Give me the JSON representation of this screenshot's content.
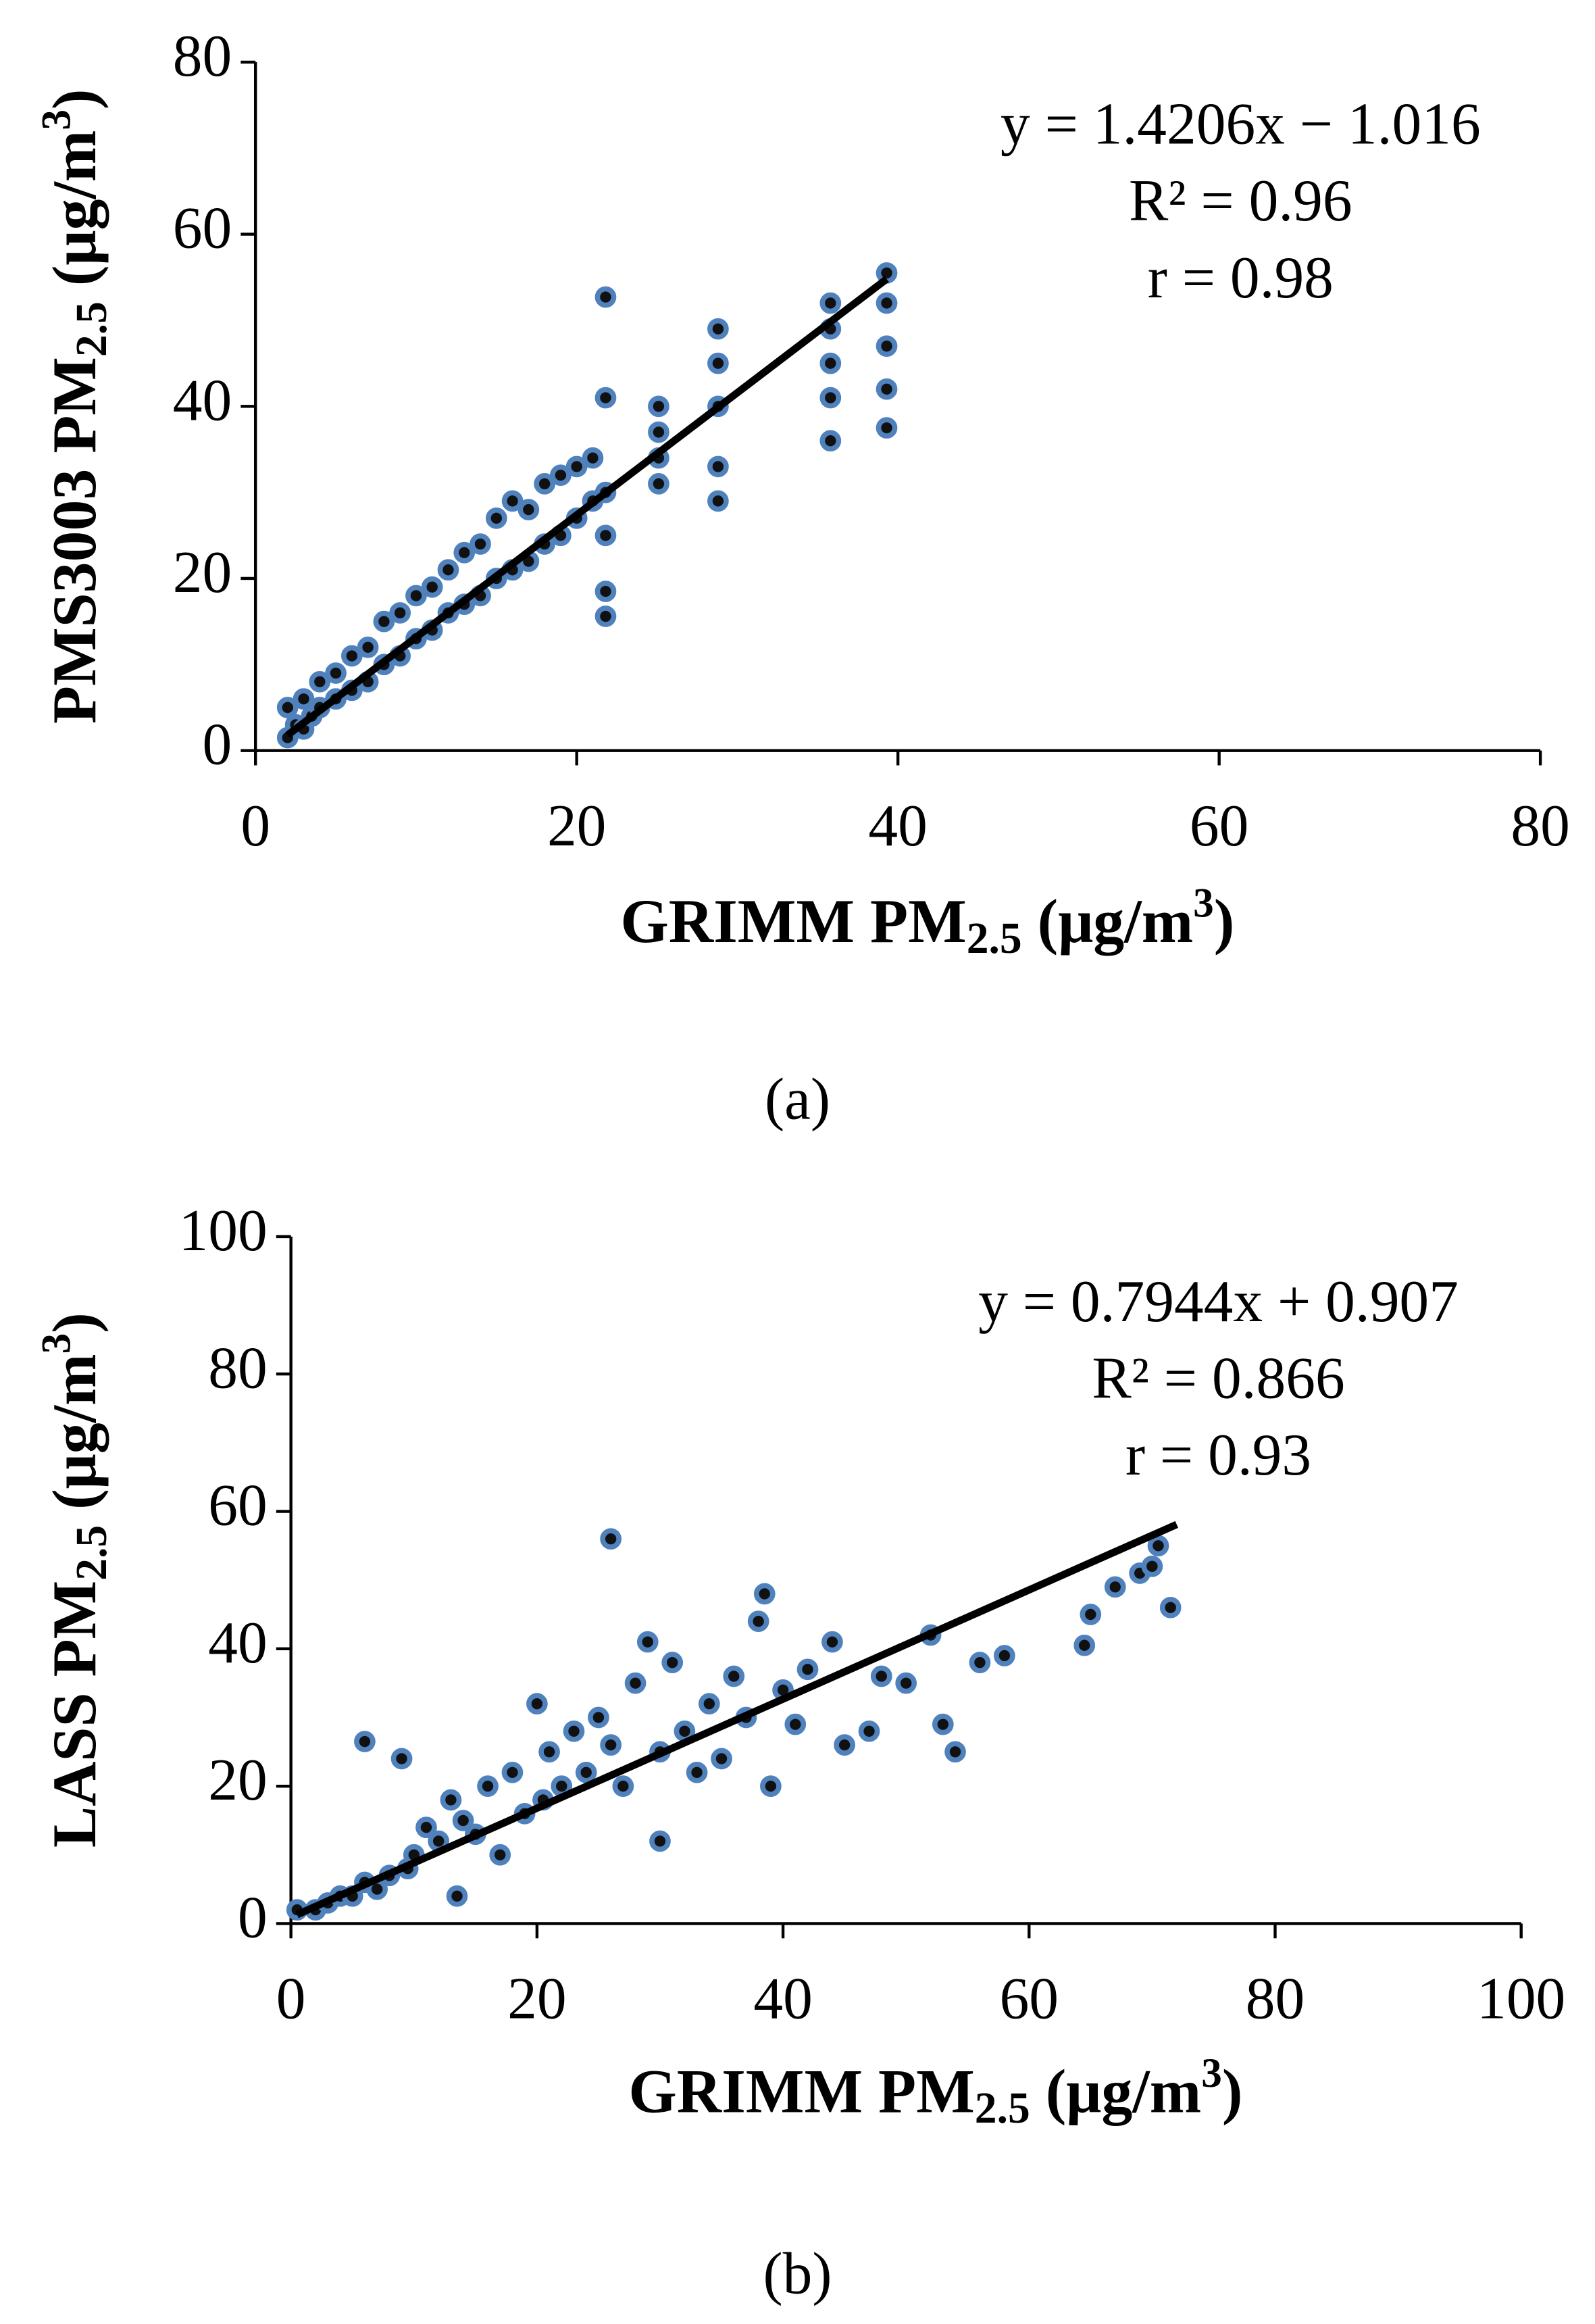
{
  "chart_data": [
    {
      "type": "scatter",
      "xlabel": [
        "GRIMM PM",
        "2.5",
        " (μg/m",
        "3",
        ")"
      ],
      "ylabel": [
        "PMS3003 PM",
        "2.5",
        " (μg/m",
        "3",
        ")"
      ],
      "xlim": [
        0,
        80
      ],
      "xticks": [
        0,
        20,
        40,
        60,
        80
      ],
      "ylim": [
        0,
        80
      ],
      "yticks": [
        0,
        20,
        40,
        60,
        80
      ],
      "annotations": [
        "y = 1.4206x − 1.016",
        "R² = 0.96",
        "r = 0.98"
      ],
      "caption": "(a)",
      "series": [
        {
          "color": "#4f81bd",
          "x": [
            2,
            2,
            2.5,
            3,
            3,
            3.5,
            4,
            4,
            5,
            5,
            6,
            6,
            7,
            7,
            8,
            8,
            9,
            9,
            10,
            10,
            11,
            11,
            12,
            12,
            13,
            13,
            14,
            14,
            15,
            15,
            16,
            16,
            17,
            17,
            18,
            18,
            19,
            19,
            20,
            20,
            21,
            21,
            21.8,
            21.8,
            21.8,
            21.8,
            21.8,
            21.8,
            25.1,
            25.1,
            25.1,
            25.1,
            28.8,
            28.8,
            28.8,
            28.8,
            28.8,
            35.8,
            35.8,
            35.8,
            35.8,
            35.8,
            39.3,
            39.3,
            39.3,
            39.3,
            39.3
          ],
          "values": [
            1.5,
            5,
            3,
            2.5,
            6,
            4,
            5,
            8,
            6,
            9,
            7,
            11,
            8,
            12,
            10,
            15,
            11,
            16,
            13,
            18,
            14,
            19,
            16,
            21,
            17,
            23,
            18,
            24,
            20,
            27,
            21,
            29,
            22,
            28,
            24,
            31,
            25,
            32,
            27,
            33,
            29,
            34,
            15.6,
            18.5,
            25,
            30,
            41,
            52.7,
            31,
            34,
            37,
            40,
            29,
            33,
            40,
            45,
            49,
            36,
            41,
            45,
            49,
            52,
            37.5,
            42,
            47,
            52,
            55.5
          ]
        }
      ],
      "trendline": {
        "color": "#000000",
        "x": [
          2,
          39.3
        ],
        "values": [
          1.8,
          54.8
        ]
      }
    },
    {
      "type": "scatter",
      "xlabel": [
        "GRIMM PM",
        "2.5",
        " (μg/m",
        "3",
        ")"
      ],
      "ylabel": [
        "LASS PM",
        "2.5",
        " (μg/m",
        "3",
        ")"
      ],
      "xlim": [
        0,
        100
      ],
      "xticks": [
        0,
        20,
        40,
        60,
        80,
        100
      ],
      "ylim": [
        0,
        100
      ],
      "yticks": [
        0,
        20,
        40,
        60,
        80,
        100
      ],
      "annotations": [
        "y = 0.7944x + 0.907",
        "R² = 0.866",
        "r = 0.93"
      ],
      "caption": "(b)",
      "series": [
        {
          "color": "#4f81bd",
          "x": [
            0.5,
            2,
            3,
            4,
            5,
            6,
            6,
            7,
            8,
            9,
            9.5,
            10,
            11,
            12,
            13,
            13.5,
            14,
            15,
            16,
            17,
            18,
            19,
            20,
            20.5,
            21,
            22,
            23,
            24,
            25,
            26,
            26,
            27,
            28,
            29,
            30,
            30,
            31,
            32,
            33,
            34,
            35,
            36,
            37,
            38,
            38.5,
            39,
            40,
            41,
            42,
            44,
            45,
            47,
            48,
            50,
            52,
            53,
            54,
            56,
            58,
            64.5,
            65,
            67,
            69,
            70,
            70.5,
            71.5
          ],
          "values": [
            2,
            2,
            3,
            4,
            4,
            26.5,
            6,
            5,
            7,
            24,
            8,
            10,
            14,
            12,
            18,
            4,
            15,
            13,
            20,
            10,
            22,
            16,
            32,
            18,
            25,
            20,
            28,
            22,
            30,
            56,
            26,
            20,
            35,
            41,
            12,
            25,
            38,
            28,
            22,
            32,
            24,
            36,
            30,
            44,
            48,
            20,
            34,
            29,
            37,
            41,
            26,
            28,
            36,
            35,
            42,
            29,
            25,
            38,
            39,
            40.5,
            45,
            49,
            51,
            52,
            55,
            46
          ]
        }
      ],
      "trendline": {
        "color": "#000000",
        "x": [
          0.5,
          72
        ],
        "values": [
          1.3,
          58.1
        ]
      }
    }
  ]
}
